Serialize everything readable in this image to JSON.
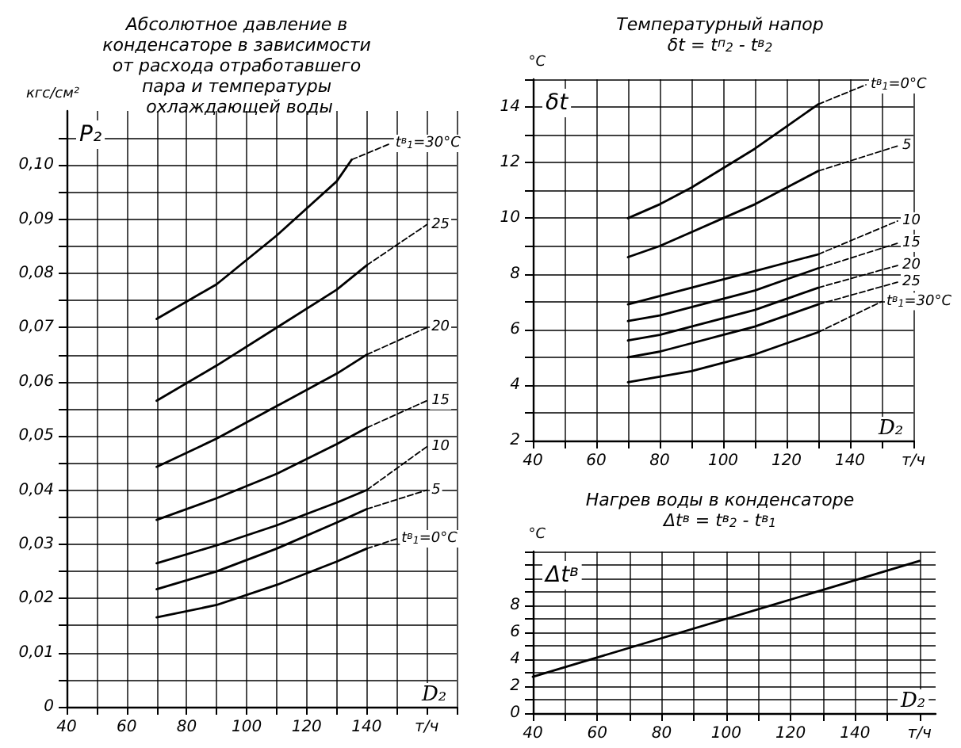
{
  "chart_data": [
    {
      "type": "line",
      "title": "Абсолютное давление в конденсаторе в зависимости от расхода отработавшего пара и температуры охлаждающей воды",
      "ylabel": "кгс/см²",
      "xlabel": "D₂",
      "annotations": [
        "P₂"
      ],
      "marker": "none",
      "grid": true,
      "line_style": "solid",
      "xlim": [
        40,
        170
      ],
      "xticks": [
        40,
        {
          "value": 50,
          "label": null
        },
        60,
        {
          "value": 70,
          "label": null
        },
        80,
        {
          "value": 90,
          "label": null
        },
        100,
        {
          "value": 110,
          "label": null
        },
        120,
        {
          "value": 130,
          "label": null
        },
        140,
        {
          "value": 150,
          "label": null
        },
        {
          "value": 160,
          "label": "т/ч"
        },
        {
          "value": 170,
          "label": null
        }
      ],
      "ylim": [
        0,
        0.11
      ],
      "yticks": [
        0,
        {
          "value": 0.005,
          "label": null
        },
        {
          "value": 0.01,
          "label": "0,01"
        },
        {
          "value": 0.015,
          "label": null
        },
        {
          "value": 0.02,
          "label": "0,02"
        },
        {
          "value": 0.025,
          "label": null
        },
        {
          "value": 0.03,
          "label": "0,03"
        },
        {
          "value": 0.035,
          "label": null
        },
        {
          "value": 0.04,
          "label": "0,04"
        },
        {
          "value": 0.045,
          "label": null
        },
        {
          "value": 0.05,
          "label": "0,05"
        },
        {
          "value": 0.055,
          "label": null
        },
        {
          "value": 0.06,
          "label": "0,06"
        },
        {
          "value": 0.065,
          "label": null
        },
        {
          "value": 0.07,
          "label": "0,07"
        },
        {
          "value": 0.075,
          "label": null
        },
        {
          "value": 0.08,
          "label": "0,08"
        },
        {
          "value": 0.085,
          "label": null
        },
        {
          "value": 0.09,
          "label": "0,09"
        },
        {
          "value": 0.095,
          "label": null
        },
        {
          "value": 0.1,
          "label": "0,10"
        },
        {
          "value": 0.105,
          "label": null
        }
      ],
      "series": [
        {
          "color": "#000000",
          "x": [
            70,
            90,
            110,
            130,
            135
          ],
          "values": [
            0.0716,
            0.078,
            0.087,
            0.097,
            0.101
          ]
        },
        {
          "color": "#000000",
          "x": [
            70,
            90,
            110,
            130,
            140
          ],
          "values": [
            0.0565,
            0.063,
            0.07,
            0.077,
            0.0815
          ]
        },
        {
          "color": "#000000",
          "x": [
            70,
            90,
            110,
            130,
            140
          ],
          "values": [
            0.0443,
            0.0495,
            0.0555,
            0.0615,
            0.065
          ]
        },
        {
          "color": "#000000",
          "x": [
            70,
            90,
            110,
            130,
            140
          ],
          "values": [
            0.0345,
            0.0385,
            0.043,
            0.0485,
            0.0515
          ]
        },
        {
          "color": "#000000",
          "x": [
            70,
            90,
            110,
            130,
            140
          ],
          "values": [
            0.0265,
            0.0298,
            0.0335,
            0.0377,
            0.04
          ]
        },
        {
          "color": "#000000",
          "x": [
            70,
            90,
            110,
            130,
            140
          ],
          "values": [
            0.0217,
            0.025,
            0.0292,
            0.034,
            0.0365
          ]
        },
        {
          "color": "#000000",
          "x": [
            70,
            90,
            110,
            130,
            140
          ],
          "values": [
            0.0165,
            0.0188,
            0.0225,
            0.0268,
            0.0292
          ]
        },
        {
          "name": "t$^{в}$$_{1}$=30°C",
          "color": "#000000",
          "line_style": "dashed",
          "x": [
            135,
            148
          ],
          "values": [
            0.101,
            0.104
          ]
        },
        {
          "name": "25",
          "color": "#000000",
          "line_style": "dashed",
          "x": [
            140,
            160
          ],
          "values": [
            0.0815,
            0.089
          ]
        },
        {
          "name": "20",
          "color": "#000000",
          "line_style": "dashed",
          "x": [
            140,
            160
          ],
          "values": [
            0.065,
            0.07
          ]
        },
        {
          "name": "15",
          "color": "#000000",
          "line_style": "dashed",
          "x": [
            140,
            160
          ],
          "values": [
            0.0515,
            0.0565
          ]
        },
        {
          "name": "10",
          "color": "#000000",
          "line_style": "dashed",
          "x": [
            140,
            160
          ],
          "values": [
            0.04,
            0.048
          ]
        },
        {
          "name": "5",
          "color": "#000000",
          "line_style": "dashed",
          "x": [
            140,
            160
          ],
          "values": [
            0.0365,
            0.04
          ]
        },
        {
          "name": "t$^{в}$$_{1}$=0°C",
          "color": "#000000",
          "line_style": "dashed",
          "x": [
            140,
            150
          ],
          "values": [
            0.0292,
            0.031
          ]
        }
      ]
    },
    {
      "type": "line",
      "title": "Температурный напор",
      "subtitle": "δt = t$^{п}$$_{2}$ - t$^{в}$$_{2}$",
      "ylabel": "°C",
      "xlabel": "D₂",
      "annotations": [
        "δt"
      ],
      "marker": "none",
      "grid": true,
      "line_style": "solid",
      "xlim": [
        40,
        160
      ],
      "xticks": [
        40,
        {
          "value": 50,
          "label": null
        },
        60,
        {
          "value": 70,
          "label": null
        },
        80,
        {
          "value": 90,
          "label": null
        },
        100,
        {
          "value": 110,
          "label": null
        },
        120,
        {
          "value": 130,
          "label": null
        },
        140,
        {
          "value": 150,
          "label": null
        },
        {
          "value": 160,
          "label": "т/ч"
        }
      ],
      "ylim": [
        2,
        15
      ],
      "yticks": [
        2,
        {
          "value": 3,
          "label": null
        },
        4,
        {
          "value": 5,
          "label": null
        },
        6,
        {
          "value": 7,
          "label": null
        },
        8,
        {
          "value": 9,
          "label": null
        },
        10,
        {
          "value": 11,
          "label": null
        },
        12,
        {
          "value": 13,
          "label": null
        },
        14,
        {
          "value": 15,
          "label": null
        }
      ],
      "series": [
        {
          "color": "#000000",
          "x": [
            70,
            80,
            90,
            100,
            110,
            120,
            130
          ],
          "values": [
            10.0,
            10.5,
            11.1,
            11.8,
            12.5,
            13.3,
            14.1
          ]
        },
        {
          "color": "#000000",
          "x": [
            70,
            80,
            90,
            100,
            110,
            120,
            130
          ],
          "values": [
            8.6,
            9.0,
            9.5,
            10.0,
            10.5,
            11.1,
            11.7
          ]
        },
        {
          "color": "#000000",
          "x": [
            70,
            80,
            90,
            100,
            110,
            120,
            130
          ],
          "values": [
            6.9,
            7.2,
            7.5,
            7.8,
            8.1,
            8.4,
            8.7
          ]
        },
        {
          "color": "#000000",
          "x": [
            70,
            80,
            90,
            100,
            110,
            120,
            130
          ],
          "values": [
            6.3,
            6.5,
            6.8,
            7.1,
            7.4,
            7.8,
            8.2
          ]
        },
        {
          "color": "#000000",
          "x": [
            70,
            80,
            90,
            100,
            110,
            120,
            130
          ],
          "values": [
            5.6,
            5.8,
            6.1,
            6.4,
            6.7,
            7.1,
            7.5
          ]
        },
        {
          "color": "#000000",
          "x": [
            70,
            80,
            90,
            100,
            110,
            120,
            130
          ],
          "values": [
            5.0,
            5.2,
            5.5,
            5.8,
            6.1,
            6.5,
            6.9
          ]
        },
        {
          "color": "#000000",
          "x": [
            70,
            80,
            90,
            100,
            110,
            120,
            130
          ],
          "values": [
            4.1,
            4.3,
            4.5,
            4.8,
            5.1,
            5.5,
            5.9
          ]
        },
        {
          "name": "t$^{в}$$_{1}$=0°C",
          "color": "#000000",
          "line_style": "dashed",
          "x": [
            130,
            145
          ],
          "values": [
            14.1,
            14.8
          ]
        },
        {
          "name": "5",
          "color": "#000000",
          "line_style": "dashed",
          "x": [
            130,
            155
          ],
          "values": [
            11.7,
            12.6
          ]
        },
        {
          "name": "10",
          "color": "#000000",
          "line_style": "dashed",
          "x": [
            130,
            155
          ],
          "values": [
            8.7,
            9.9
          ]
        },
        {
          "name": "15",
          "color": "#000000",
          "line_style": "dashed",
          "x": [
            130,
            155
          ],
          "values": [
            8.2,
            9.1
          ]
        },
        {
          "name": "20",
          "color": "#000000",
          "line_style": "dashed",
          "x": [
            130,
            155
          ],
          "values": [
            7.5,
            8.3
          ]
        },
        {
          "name": "25",
          "color": "#000000",
          "line_style": "dashed",
          "x": [
            130,
            155
          ],
          "values": [
            6.9,
            7.7
          ]
        },
        {
          "name": "t$^{в}$$_{1}$=30°C",
          "color": "#000000",
          "line_style": "dashed",
          "x": [
            130,
            150
          ],
          "values": [
            5.9,
            7.0
          ]
        }
      ]
    },
    {
      "type": "line",
      "title": "Нагрев воды в конденсаторе",
      "subtitle": "Δt$^{в}$ = t$^{в}$$_{2}$ - t$^{в}$$_{1}$",
      "ylabel": "°C",
      "xlabel": "D₂",
      "annotations": [
        "Δt$^{в}$"
      ],
      "marker": "none",
      "grid": true,
      "line_style": "solid",
      "xlim": [
        40,
        165
      ],
      "xticks": [
        40,
        {
          "value": 50,
          "label": null
        },
        60,
        {
          "value": 70,
          "label": null
        },
        80,
        {
          "value": 90,
          "label": null
        },
        100,
        {
          "value": 110,
          "label": null
        },
        120,
        {
          "value": 130,
          "label": null
        },
        140,
        {
          "value": 150,
          "label": null
        },
        {
          "value": 160,
          "label": "т/ч"
        }
      ],
      "ylim": [
        0,
        12
      ],
      "yticks": [
        0,
        {
          "value": 1,
          "label": null
        },
        2,
        {
          "value": 3,
          "label": null
        },
        4,
        {
          "value": 5,
          "label": null
        },
        6,
        {
          "value": 7,
          "label": null
        },
        8,
        {
          "value": 9,
          "label": null
        },
        {
          "value": 10,
          "label": null
        },
        {
          "value": 11,
          "label": null
        },
        {
          "value": 12,
          "label": null
        }
      ],
      "series": [
        {
          "color": "#000000",
          "x": [
            40,
            160
          ],
          "values": [
            2.7,
            11.3
          ]
        }
      ]
    }
  ]
}
